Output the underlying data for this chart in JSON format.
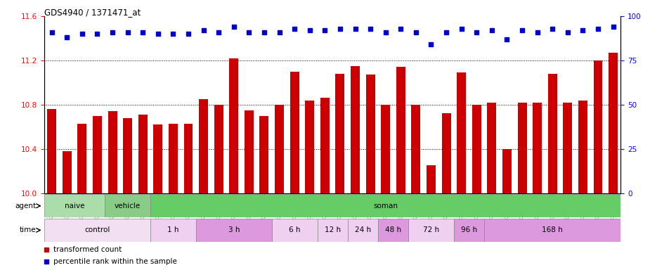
{
  "title": "GDS4940 / 1371471_at",
  "samples": [
    "GSM338857",
    "GSM338858",
    "GSM338859",
    "GSM338862",
    "GSM338864",
    "GSM338877",
    "GSM338880",
    "GSM338860",
    "GSM338861",
    "GSM338863",
    "GSM338865",
    "GSM338866",
    "GSM338867",
    "GSM338868",
    "GSM338869",
    "GSM338870",
    "GSM338871",
    "GSM338872",
    "GSM338873",
    "GSM338874",
    "GSM338875",
    "GSM338876",
    "GSM338878",
    "GSM338879",
    "GSM338881",
    "GSM338882",
    "GSM338883",
    "GSM338884",
    "GSM338885",
    "GSM338886",
    "GSM338887",
    "GSM338888",
    "GSM338889",
    "GSM338890",
    "GSM338891",
    "GSM338892",
    "GSM338893",
    "GSM338894"
  ],
  "bar_values": [
    10.76,
    10.38,
    10.63,
    10.7,
    10.74,
    10.68,
    10.71,
    10.62,
    10.63,
    10.63,
    10.85,
    10.8,
    11.22,
    10.75,
    10.7,
    10.8,
    11.1,
    10.84,
    10.86,
    11.08,
    11.15,
    11.07,
    10.8,
    11.14,
    10.8,
    10.25,
    10.72,
    11.09,
    10.8,
    10.82,
    10.4,
    10.82,
    10.82,
    11.08,
    10.82,
    10.84,
    11.2,
    11.27
  ],
  "percentile_values": [
    91,
    88,
    90,
    90,
    91,
    91,
    91,
    90,
    90,
    90,
    92,
    91,
    94,
    91,
    91,
    91,
    93,
    92,
    92,
    93,
    93,
    93,
    91,
    93,
    91,
    84,
    91,
    93,
    91,
    92,
    87,
    92,
    91,
    93,
    91,
    92,
    93,
    94
  ],
  "ylim_left": [
    10.0,
    11.6
  ],
  "ylim_right": [
    0,
    100
  ],
  "yticks_left": [
    10.0,
    10.4,
    10.8,
    11.2,
    11.6
  ],
  "yticks_right": [
    0,
    25,
    50,
    75,
    100
  ],
  "bar_color": "#cc0000",
  "dot_color": "#0000cc",
  "bg_color": "#ffffff",
  "agent_blocks": [
    {
      "label": "naive",
      "start": 0,
      "end": 4,
      "color": "#aaddaa"
    },
    {
      "label": "vehicle",
      "start": 4,
      "end": 7,
      "color": "#88cc88"
    },
    {
      "label": "soman",
      "start": 7,
      "end": 38,
      "color": "#66cc66"
    }
  ],
  "time_blocks": [
    {
      "label": "control",
      "start": 0,
      "end": 7,
      "color": "#f2e0f2"
    },
    {
      "label": "1 h",
      "start": 7,
      "end": 10,
      "color": "#f0d0f0"
    },
    {
      "label": "3 h",
      "start": 10,
      "end": 15,
      "color": "#dd99dd"
    },
    {
      "label": "6 h",
      "start": 15,
      "end": 18,
      "color": "#f0d0f0"
    },
    {
      "label": "12 h",
      "start": 18,
      "end": 20,
      "color": "#f0d0f0"
    },
    {
      "label": "24 h",
      "start": 20,
      "end": 22,
      "color": "#f0d0f0"
    },
    {
      "label": "48 h",
      "start": 22,
      "end": 24,
      "color": "#dd99dd"
    },
    {
      "label": "72 h",
      "start": 24,
      "end": 27,
      "color": "#f0d0f0"
    },
    {
      "label": "96 h",
      "start": 27,
      "end": 29,
      "color": "#dd99dd"
    },
    {
      "label": "168 h",
      "start": 29,
      "end": 38,
      "color": "#dd99dd"
    }
  ],
  "legend_bar_label": "transformed count",
  "legend_dot_label": "percentile rank within the sample"
}
